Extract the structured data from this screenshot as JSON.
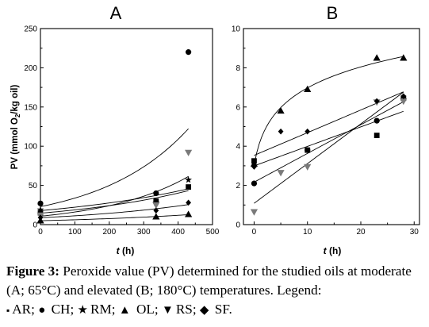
{
  "chart_data": [
    {
      "type": "scatter",
      "title": "A",
      "ylabel": "PV (mmol O2/kg oil)",
      "ylabel_parts": [
        "PV (mmol O",
        "2",
        "/kg oil)"
      ],
      "xlabel_italic": "t",
      "xlabel_rest": " (h)",
      "xlim": [
        0,
        500
      ],
      "ylim": [
        0,
        250
      ],
      "xticks": [
        "0",
        "100",
        "200",
        "300",
        "400",
        "500"
      ],
      "yticks": [
        "0",
        "50",
        "100",
        "150",
        "200",
        "250"
      ],
      "grid": false,
      "fit": "exponential",
      "series": [
        {
          "name": "AR",
          "marker": "square",
          "x": [
            0,
            336,
            430
          ],
          "y": [
            15,
            30,
            48
          ]
        },
        {
          "name": "CH",
          "marker": "circle",
          "x": [
            0,
            336,
            430
          ],
          "y": [
            27,
            40,
            220
          ]
        },
        {
          "name": "RM",
          "marker": "star",
          "x": [
            0,
            336,
            430
          ],
          "y": [
            19,
            28,
            57
          ]
        },
        {
          "name": "OL",
          "marker": "triangle",
          "x": [
            0,
            336,
            430
          ],
          "y": [
            5,
            10,
            13
          ]
        },
        {
          "name": "RS",
          "marker": "tri-down",
          "x": [
            0,
            336,
            430
          ],
          "y": [
            12,
            25,
            92
          ]
        },
        {
          "name": "SF",
          "marker": "diamond",
          "x": [
            0,
            336,
            430
          ],
          "y": [
            9,
            18,
            28
          ]
        }
      ]
    },
    {
      "type": "scatter",
      "title": "B",
      "xlabel_italic": "t",
      "xlabel_rest": " (h)",
      "xlim": [
        -2,
        31
      ],
      "ylim": [
        0,
        10
      ],
      "xticks": [
        "0",
        "10",
        "20",
        "30"
      ],
      "yticks": [
        "0",
        "2",
        "4",
        "6",
        "8",
        "10"
      ],
      "grid": false,
      "series": [
        {
          "name": "AR",
          "marker": "square",
          "fit": "linear",
          "x": [
            0,
            10,
            23,
            28
          ],
          "y": [
            3.25,
            3.8,
            4.55,
            6.45
          ]
        },
        {
          "name": "CH",
          "marker": "circle",
          "fit": "linear",
          "x": [
            0,
            10,
            23,
            28
          ],
          "y": [
            2.1,
            3.8,
            5.3,
            6.4
          ]
        },
        {
          "name": "OL",
          "marker": "triangle",
          "fit": "log",
          "x": [
            0,
            5,
            10,
            23,
            28
          ],
          "y": [
            3.1,
            5.8,
            6.9,
            8.5,
            8.5
          ]
        },
        {
          "name": "RS",
          "marker": "tri-down",
          "fit": "linear",
          "x": [
            0,
            5,
            10,
            23,
            28
          ],
          "y": [
            0.65,
            2.65,
            2.95,
            6.25,
            6.3
          ]
        },
        {
          "name": "SF",
          "marker": "diamond",
          "fit": "linear",
          "x": [
            0,
            5,
            10,
            23,
            28
          ],
          "y": [
            2.95,
            4.75,
            4.75,
            6.3,
            6.55
          ]
        }
      ]
    }
  ],
  "caption": {
    "label": "Figure 3:",
    "text": " Peroxide value (PV) determined for the studied oils at moderate (A; 65°C) and elevated (B; 180°C) temperatures. Legend:",
    "legend": [
      {
        "symbol": "▪",
        "text": "AR; "
      },
      {
        "symbol": "●",
        "text": " CH; "
      },
      {
        "symbol": "★",
        "text": "RM; "
      },
      {
        "symbol": "▲",
        "text": " OL; "
      },
      {
        "symbol": "▼",
        "text": "RS; "
      },
      {
        "symbol": "◆",
        "text": " SF."
      }
    ]
  },
  "colors": {
    "main": "#000000",
    "rs_marker": "#7a7a7a"
  }
}
